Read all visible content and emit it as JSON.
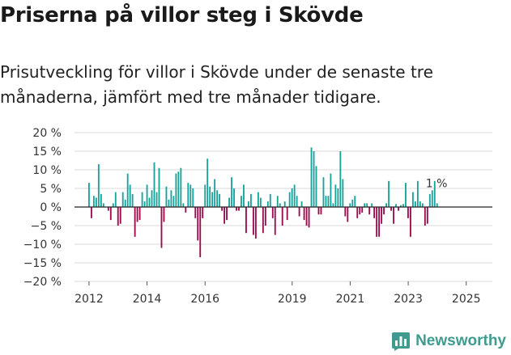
{
  "header": {
    "title": "Priserna på villor steg i Skövde",
    "subtitle": "Prisutveckling för villor i Skövde under de senaste tre månaderna, jämfört med tre månader tidigare."
  },
  "brand": {
    "name": "Newsworthy",
    "icon": "bar-chart-logo-icon"
  },
  "colors": {
    "positive": "#18a39a",
    "negative": "#9c0b4e",
    "zero_line": "#222222",
    "grid": "#d8d8d8"
  },
  "chart_data": {
    "type": "bar",
    "ylim": [
      -20,
      20
    ],
    "yticks": [
      20,
      15,
      10,
      5,
      0,
      -5,
      -10,
      -15,
      -20
    ],
    "ytick_labels": [
      "20 %",
      "15 %",
      "10 %",
      "5 %",
      "0 %",
      "−5 %",
      "−10 %",
      "−15 %",
      "−20 %"
    ],
    "x_start": 2012.0,
    "x_step": 0.0833,
    "xticks": [
      2012,
      2014,
      2016,
      2019,
      2021,
      2023,
      2025
    ],
    "xtick_labels": [
      "2012",
      "2014",
      "2016",
      "2019",
      "2021",
      "2023",
      "2025"
    ],
    "last_value_label": "1 %",
    "values": [
      6.5,
      -3.0,
      3.0,
      2.5,
      11.5,
      3.5,
      1.0,
      0,
      -1.0,
      -3.5,
      1.0,
      4.0,
      -5.0,
      -4.5,
      4.0,
      2.0,
      9.0,
      6.0,
      3.5,
      -8.0,
      -4.0,
      -3.5,
      4.0,
      1.5,
      6.0,
      2.5,
      4.5,
      12.0,
      4.0,
      10.5,
      -11.0,
      -4.0,
      5.5,
      2.0,
      4.5,
      3.0,
      9.0,
      9.5,
      10.5,
      1.0,
      -1.5,
      6.5,
      6.0,
      5.0,
      -3.0,
      -9.0,
      -13.5,
      -3.0,
      6.0,
      13.0,
      5.5,
      4.0,
      7.5,
      4.5,
      3.5,
      -1.0,
      -4.5,
      -3.5,
      2.5,
      8.0,
      5.0,
      -1.0,
      -1.0,
      3.0,
      6.0,
      -7.0,
      1.5,
      3.5,
      -7.5,
      -8.5,
      4.0,
      2.5,
      -7.0,
      -5.0,
      1.5,
      3.5,
      -3.0,
      -7.5,
      3.0,
      1.0,
      -5.0,
      1.5,
      -3.5,
      4.0,
      5.0,
      6.0,
      3.0,
      -2.5,
      1.5,
      -3.5,
      -5.0,
      -5.5,
      16.0,
      15.0,
      11.0,
      -2.0,
      -2.0,
      8.0,
      3.0,
      3.0,
      9.0,
      1.0,
      6.0,
      5.0,
      15.0,
      7.5,
      -2.5,
      -4.0,
      1.0,
      2.0,
      3.0,
      -3.0,
      -2.0,
      -1.5,
      1.0,
      1.0,
      -2.0,
      1.0,
      -3.0,
      -8.0,
      -8.0,
      -4.5,
      -2.0,
      1.0,
      7.0,
      -1.0,
      -4.5,
      0.8,
      -1.0,
      0.5,
      0.8,
      6.5,
      -3.0,
      -8.0,
      4.0,
      1.5,
      7.0,
      1.5,
      1.0,
      -5.0,
      -4.5,
      3.5,
      4.5,
      7.0,
      1.0
    ]
  }
}
